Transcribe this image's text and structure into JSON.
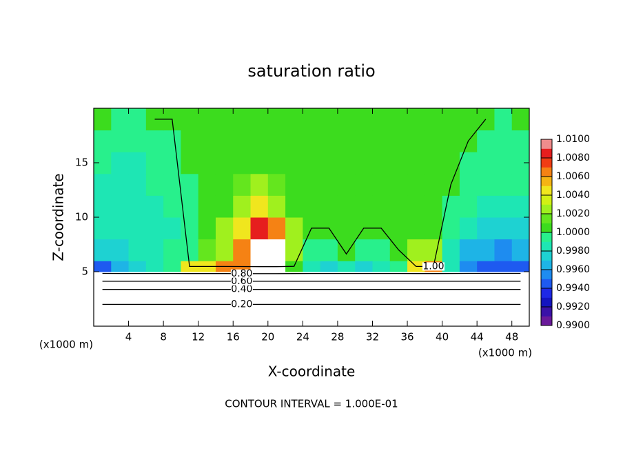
{
  "chart_data": {
    "type": "contour",
    "title": "saturation ratio",
    "xlabel": "X-coordinate",
    "ylabel": "Z-coordinate",
    "x_unit": "(x1000 m)",
    "y_unit": "(x1000 m)",
    "footer": "CONTOUR INTERVAL = 1.000E-01",
    "xlim": [
      0,
      50
    ],
    "ylim": [
      0,
      20
    ],
    "xticks": [
      4,
      8,
      12,
      16,
      20,
      24,
      28,
      32,
      36,
      40,
      44,
      48
    ],
    "yticks": [
      5,
      10,
      15
    ],
    "x_edges": [
      0,
      2,
      4,
      6,
      8,
      10,
      12,
      14,
      16,
      18,
      20,
      22,
      24,
      26,
      28,
      30,
      32,
      34,
      36,
      38,
      40,
      42,
      44,
      46,
      48,
      50
    ],
    "y_edges": [
      0,
      2,
      4,
      5,
      6,
      8,
      10,
      12,
      14,
      16,
      18,
      20
    ],
    "z": [
      [
        0.1,
        0.1,
        0.1,
        0.1,
        0.1,
        0.1,
        0.1,
        0.1,
        0.1,
        0.1,
        0.1,
        0.1,
        0.1,
        0.1,
        0.1,
        0.1,
        0.1,
        0.1,
        0.1,
        0.1,
        0.1,
        0.1,
        0.1,
        0.1,
        0.1
      ],
      [
        0.3,
        0.3,
        0.3,
        0.3,
        0.3,
        0.3,
        0.3,
        0.3,
        0.3,
        0.3,
        0.3,
        0.3,
        0.3,
        0.3,
        0.3,
        0.3,
        0.3,
        0.3,
        0.3,
        0.3,
        0.3,
        0.3,
        0.3,
        0.3,
        0.3
      ],
      [
        0.7,
        0.7,
        0.7,
        0.7,
        0.7,
        0.7,
        0.7,
        0.7,
        0.7,
        0.7,
        0.7,
        0.7,
        0.7,
        0.7,
        0.7,
        0.7,
        0.7,
        0.7,
        0.7,
        0.7,
        0.7,
        0.7,
        0.7,
        0.7,
        0.7
      ],
      [
        0.9945,
        0.9965,
        0.997,
        0.998,
        0.999,
        1.004,
        1.005,
        1.006,
        1.007,
        1.012,
        1.012,
        1.001,
        0.9985,
        0.997,
        0.9985,
        0.997,
        0.998,
        0.999,
        1.004,
        1.006,
        0.998,
        0.995,
        0.994,
        0.994,
        0.9945
      ],
      [
        0.997,
        0.9975,
        0.998,
        0.9985,
        0.999,
        0.9995,
        1.0015,
        1.003,
        1.006,
        1.012,
        1.011,
        1.003,
        0.9995,
        0.999,
        1.0005,
        0.999,
        0.9995,
        1.0,
        1.002,
        1.003,
        0.998,
        0.9965,
        0.996,
        0.9955,
        0.996
      ],
      [
        0.998,
        0.998,
        0.998,
        0.9985,
        0.9985,
        0.999,
        1.0005,
        1.002,
        1.005,
        1.008,
        1.007,
        1.002,
        1.0,
        1.0,
        1.0,
        1.0,
        1.0,
        1.0,
        1.0005,
        1.0005,
        0.999,
        0.998,
        0.9975,
        0.997,
        0.9975
      ],
      [
        0.998,
        0.998,
        0.9985,
        0.9985,
        0.999,
        0.9995,
        1.0,
        1.001,
        1.003,
        1.004,
        1.003,
        1.001,
        1.0,
        1.0,
        1.0,
        1.0,
        1.0,
        1.0,
        1.0,
        1.0,
        0.9995,
        0.999,
        0.9985,
        0.998,
        0.9985
      ],
      [
        0.9985,
        0.998,
        0.9985,
        0.999,
        0.9995,
        0.9995,
        1.0,
        1.0005,
        1.0015,
        1.002,
        1.0015,
        1.0005,
        1.0,
        1.0,
        1.0,
        1.0,
        1.0,
        1.0,
        1.0,
        1.0,
        1.0,
        0.9995,
        0.999,
        0.999,
        0.999
      ],
      [
        0.999,
        0.9985,
        0.9985,
        0.999,
        0.9995,
        1.0,
        1.0,
        1.0,
        1.0005,
        1.001,
        1.0005,
        1.0005,
        1.0,
        1.0,
        1.0,
        1.0,
        1.0,
        1.0,
        1.0,
        1.0,
        1.0,
        0.9995,
        0.999,
        0.999,
        0.999
      ],
      [
        0.9995,
        0.999,
        0.999,
        0.9995,
        0.9995,
        1.0,
        1.0,
        1.0,
        1.0,
        1.0005,
        1.0,
        1.0,
        1.0,
        1.0,
        1.0,
        1.0,
        1.0,
        1.0,
        1.0,
        1.0,
        1.0,
        1.0,
        0.9995,
        0.9995,
        0.9995
      ],
      [
        1.0,
        0.9995,
        0.9995,
        1.0,
        1.0,
        1.0,
        1.0,
        1.0,
        1.0,
        1.0,
        1.0,
        1.0,
        1.0,
        1.0,
        1.0,
        1.0,
        1.0,
        1.0,
        1.0,
        1.0,
        1.0,
        1.0,
        1.0,
        0.9995,
        1.0
      ]
    ],
    "clim": [
      0.99,
      1.01
    ],
    "colors": [
      "#6a1a9a",
      "#3a12a8",
      "#1414c0",
      "#1e28e6",
      "#1e5af0",
      "#1e8cf0",
      "#1eb4e6",
      "#1ed2d2",
      "#1ee6b4",
      "#28f08c",
      "#3cdc1e",
      "#64e61e",
      "#a0f01e",
      "#d2f014",
      "#f0e61e",
      "#f5b414",
      "#f58214",
      "#f03c14",
      "#e61e1e",
      "#f08c8c"
    ],
    "colorbar_ticks": [
      {
        "value": 0.99,
        "label": "0.9900"
      },
      {
        "value": 0.992,
        "label": "0.9920"
      },
      {
        "value": 0.994,
        "label": "0.9940"
      },
      {
        "value": 0.996,
        "label": "0.9960"
      },
      {
        "value": 0.998,
        "label": "0.9980"
      },
      {
        "value": 1.0,
        "label": "1.0000"
      },
      {
        "value": 1.002,
        "label": "1.0020"
      },
      {
        "value": 1.004,
        "label": "1.0040"
      },
      {
        "value": 1.006,
        "label": "1.0060"
      },
      {
        "value": 1.008,
        "label": "1.0080"
      },
      {
        "value": 1.01,
        "label": "1.0100"
      }
    ],
    "contour_levels": [
      {
        "value": 0.2,
        "label": "0.20"
      },
      {
        "value": 0.4,
        "label": "0.40"
      },
      {
        "value": 0.6,
        "label": "0.60"
      },
      {
        "value": 0.8,
        "label": "0.80"
      },
      {
        "value": 1.0,
        "label": "1.00"
      }
    ]
  }
}
